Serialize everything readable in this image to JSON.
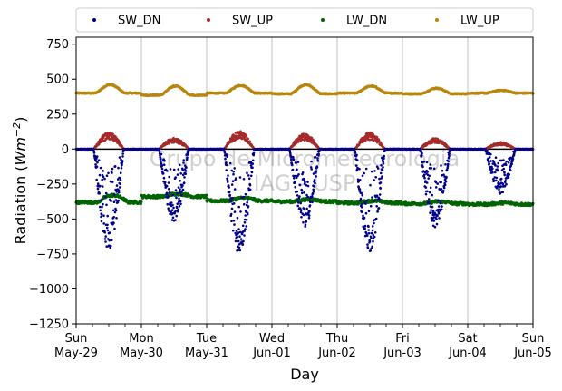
{
  "chart_data": {
    "type": "scatter",
    "xlabel": "Day",
    "ylabel": "Radiation (Wm⁻²)",
    "ylabel_main": "Radiation (",
    "ylabel_unit": "Wm",
    "ylabel_exp": "−2",
    "ylabel_close": ")",
    "ylim": [
      -1250,
      800
    ],
    "yticks": [
      -1250,
      -1000,
      -750,
      -500,
      -250,
      0,
      250,
      500,
      750
    ],
    "ytick_labels": [
      "−1250",
      "−1000",
      "−750",
      "−500",
      "−250",
      "0",
      "250",
      "500",
      "750"
    ],
    "x_range": [
      "2022-05-29",
      "2022-06-05"
    ],
    "xticks": [
      {
        "day": "Sun",
        "date": "May-29"
      },
      {
        "day": "Mon",
        "date": "May-30"
      },
      {
        "day": "Tue",
        "date": "May-31"
      },
      {
        "day": "Wed",
        "date": "Jun-01"
      },
      {
        "day": "Thu",
        "date": "Jun-02"
      },
      {
        "day": "Fri",
        "date": "Jun-03"
      },
      {
        "day": "Sat",
        "date": "Jun-04"
      },
      {
        "day": "Sun",
        "date": "Jun-05"
      }
    ],
    "grid": "vertical",
    "legend_position": "top",
    "watermark": [
      "Grupo de Micrometeorologia",
      "IAG - USP"
    ],
    "series": [
      {
        "name": "SW_DN",
        "color": "#00008b",
        "daily_peak_min": [
          -720,
          -520,
          -750,
          -560,
          -730,
          -560,
          -320
        ],
        "daily_peak_hour": [
          13.0,
          12.5,
          12.5,
          12.5,
          12.5,
          12.5,
          12.5
        ]
      },
      {
        "name": "SW_UP",
        "color": "#a52a2a",
        "daily_peak_max": [
          120,
          80,
          130,
          110,
          120,
          80,
          50
        ],
        "daily_peak_hour": [
          13.0,
          12.5,
          12.5,
          12.5,
          12.5,
          12.5,
          12.5
        ]
      },
      {
        "name": "LW_DN",
        "color": "#006400",
        "daily_values": [
          {
            "day_start": -380,
            "day_peak": -330
          },
          {
            "day_start": -340,
            "day_peak": -320
          },
          {
            "day_start": -370,
            "day_peak": -350
          },
          {
            "day_start": -375,
            "day_peak": -360
          },
          {
            "day_start": -385,
            "day_peak": -370
          },
          {
            "day_start": -390,
            "day_peak": -375
          },
          {
            "day_start": -395,
            "day_peak": -385
          }
        ]
      },
      {
        "name": "LW_UP",
        "color": "#b8860b",
        "night_level": [
          400,
          385,
          400,
          395,
          400,
          395,
          400
        ],
        "day_peak": [
          460,
          450,
          455,
          460,
          450,
          435,
          420
        ]
      }
    ]
  }
}
